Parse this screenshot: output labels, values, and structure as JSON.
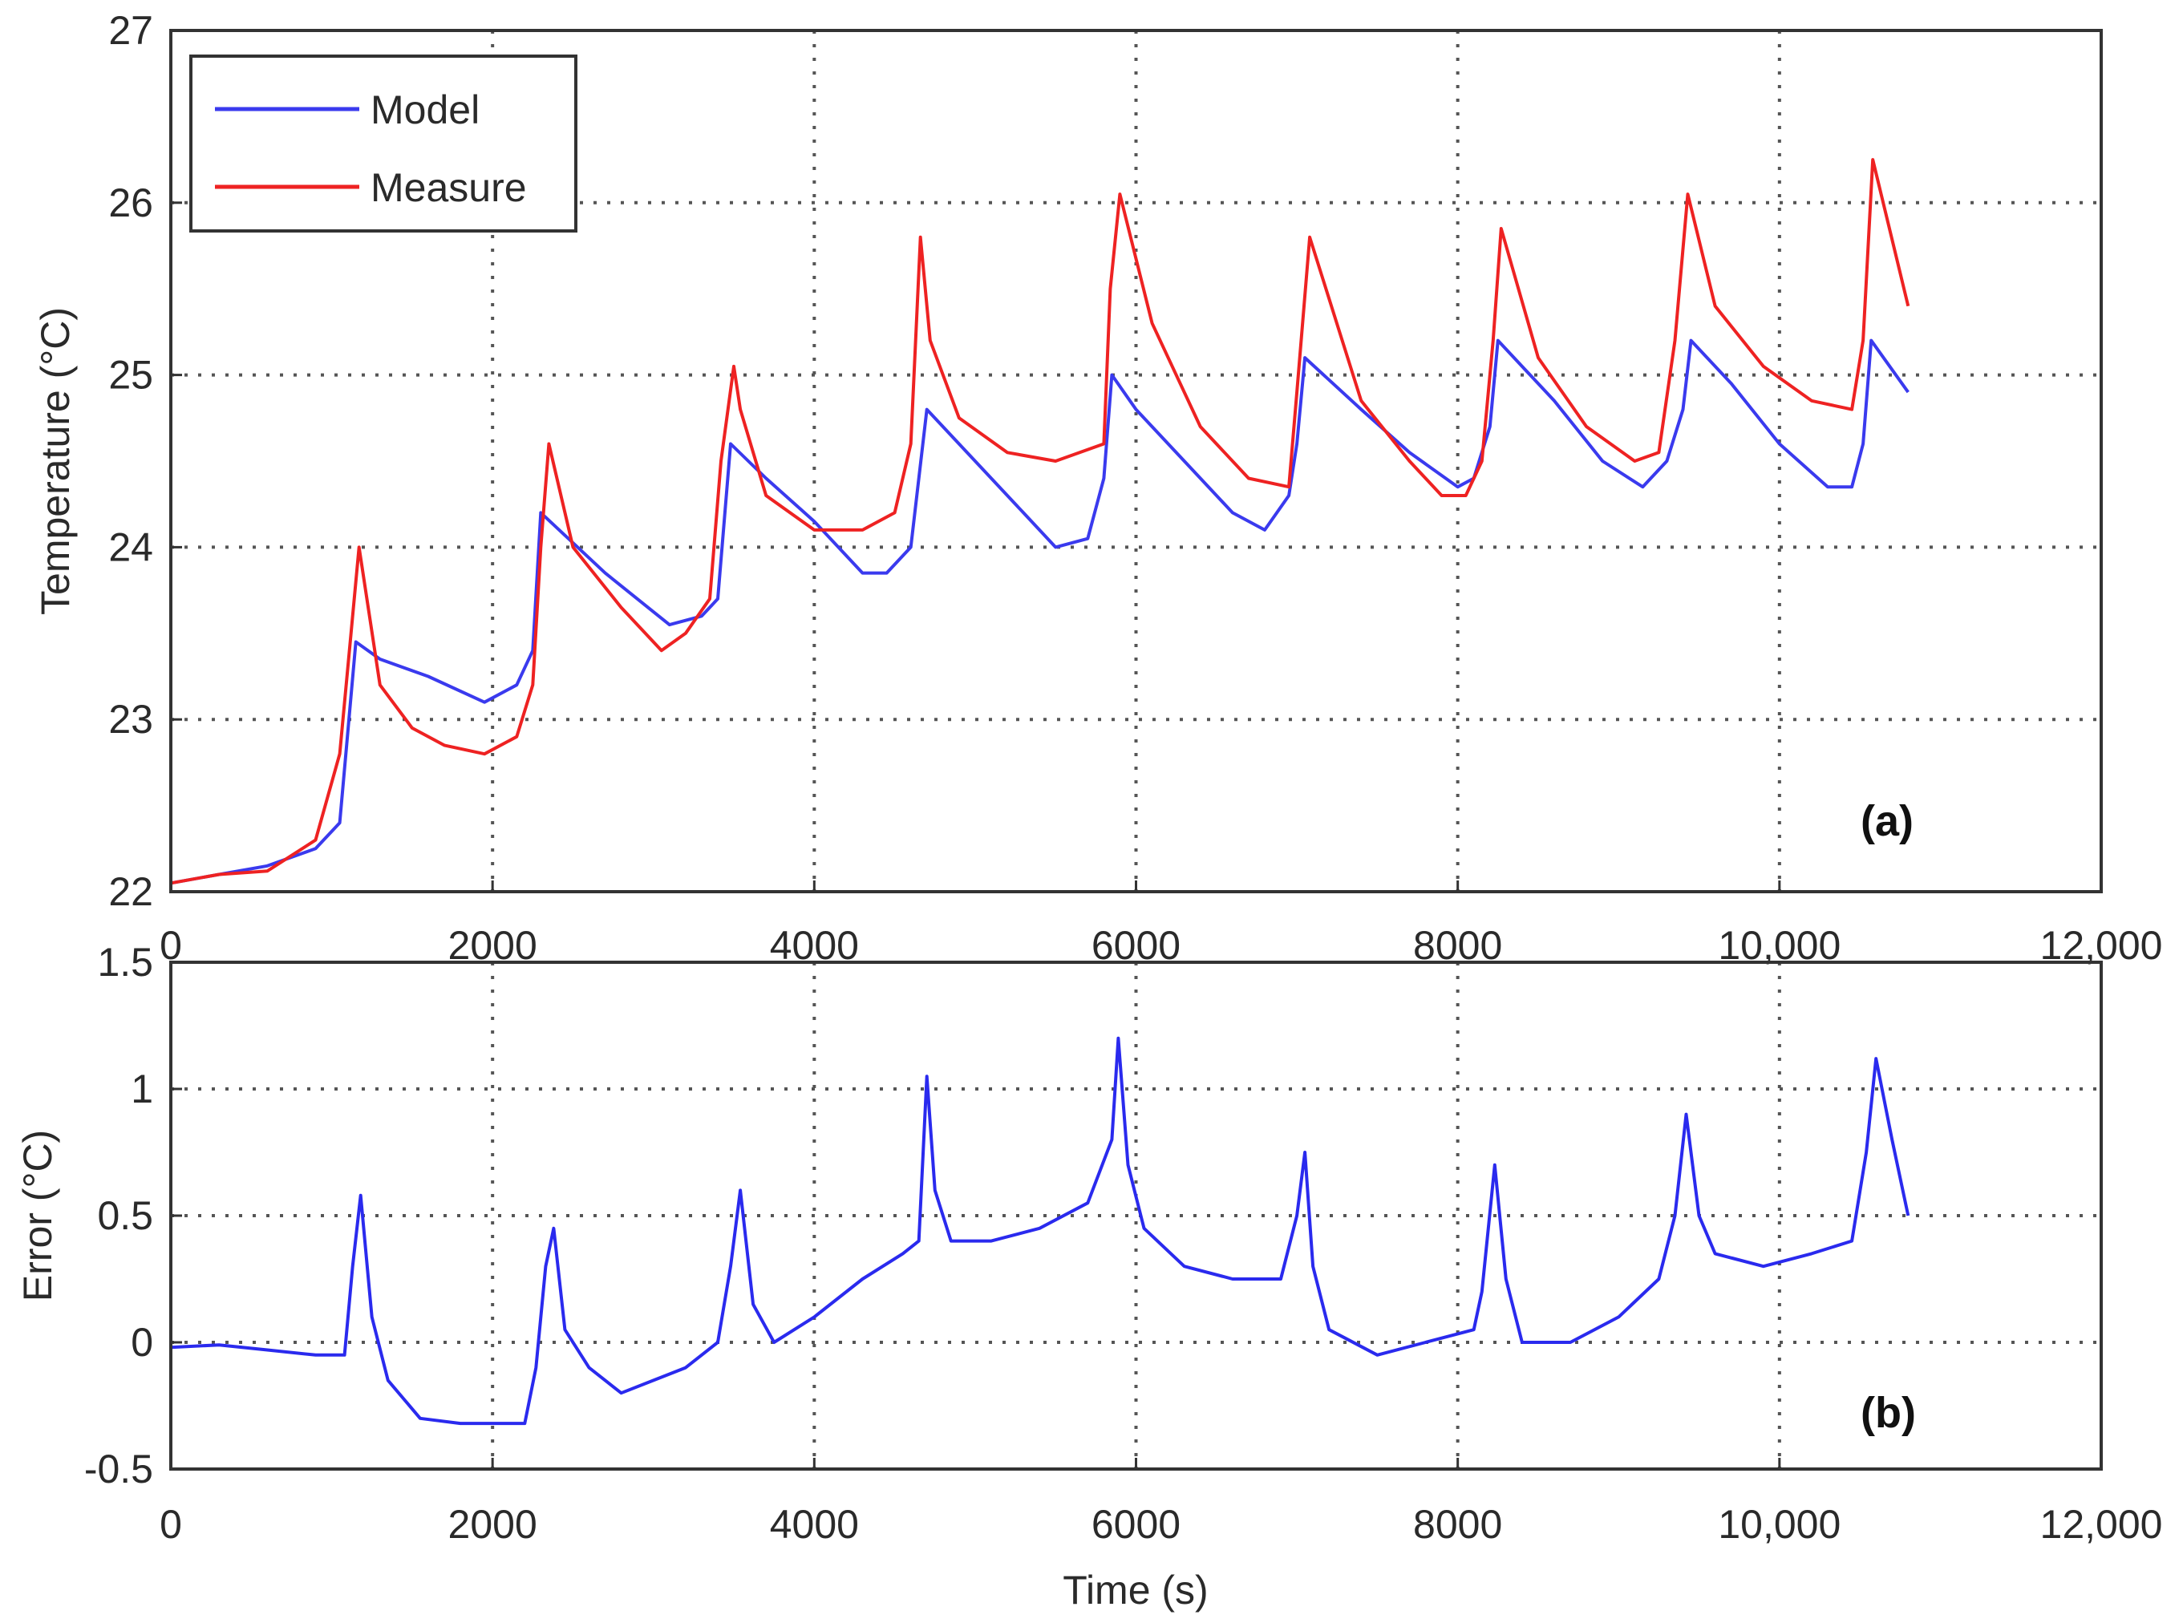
{
  "chart_data": [
    {
      "panel": "(a)",
      "type": "line",
      "xlabel": "",
      "ylabel": "Temperature (°C)",
      "xlim": [
        0,
        12000
      ],
      "ylim": [
        22,
        27
      ],
      "xticks": [
        "0",
        "2000",
        "4000",
        "6000",
        "8000",
        "10,000",
        "12,000"
      ],
      "yticks": [
        "22",
        "23",
        "24",
        "25",
        "26",
        "27"
      ],
      "grid": true,
      "legend": "top-left",
      "series": [
        {
          "name": "Model",
          "color": "#3a3aee",
          "x": [
            0,
            300,
            600,
            900,
            1050,
            1150,
            1300,
            1600,
            1950,
            2150,
            2250,
            2300,
            2700,
            3100,
            3300,
            3400,
            3480,
            3700,
            4000,
            4300,
            4450,
            4600,
            4650,
            4700,
            5000,
            5300,
            5500,
            5700,
            5800,
            5850,
            6000,
            6300,
            6600,
            6800,
            6950,
            7000,
            7050,
            7400,
            7700,
            8000,
            8100,
            8200,
            8250,
            8600,
            8900,
            9150,
            9300,
            9400,
            9450,
            9700,
            10000,
            10300,
            10450,
            10520,
            10570,
            10800
          ],
          "y": [
            22.05,
            22.1,
            22.15,
            22.25,
            22.4,
            23.45,
            23.35,
            23.25,
            23.1,
            23.2,
            23.4,
            24.2,
            23.85,
            23.55,
            23.6,
            23.7,
            24.6,
            24.4,
            24.15,
            23.85,
            23.85,
            24.0,
            24.4,
            24.8,
            24.5,
            24.2,
            24.0,
            24.05,
            24.4,
            25.0,
            24.8,
            24.5,
            24.2,
            24.1,
            24.3,
            24.6,
            25.1,
            24.8,
            24.55,
            24.35,
            24.4,
            24.7,
            25.2,
            24.85,
            24.5,
            24.35,
            24.5,
            24.8,
            25.2,
            24.95,
            24.6,
            24.35,
            24.35,
            24.6,
            25.2,
            24.9
          ]
        },
        {
          "name": "Measure",
          "color": "#ee2222",
          "x": [
            0,
            300,
            600,
            900,
            1050,
            1120,
            1170,
            1300,
            1500,
            1700,
            1950,
            2150,
            2250,
            2300,
            2350,
            2500,
            2800,
            3050,
            3200,
            3350,
            3420,
            3500,
            3540,
            3700,
            4000,
            4300,
            4500,
            4600,
            4660,
            4720,
            4900,
            5200,
            5500,
            5800,
            5840,
            5900,
            6100,
            6400,
            6700,
            6950,
            7000,
            7080,
            7400,
            7700,
            7900,
            8050,
            8150,
            8220,
            8270,
            8500,
            8800,
            9100,
            9250,
            9350,
            9430,
            9600,
            9900,
            10200,
            10450,
            10520,
            10580,
            10800
          ],
          "y": [
            22.05,
            22.1,
            22.12,
            22.3,
            22.8,
            23.5,
            24.0,
            23.2,
            22.95,
            22.85,
            22.8,
            22.9,
            23.2,
            24.0,
            24.6,
            24.0,
            23.65,
            23.4,
            23.5,
            23.7,
            24.5,
            25.05,
            24.8,
            24.3,
            24.1,
            24.1,
            24.2,
            24.6,
            25.8,
            25.2,
            24.75,
            24.55,
            24.5,
            24.6,
            25.5,
            26.05,
            25.3,
            24.7,
            24.4,
            24.35,
            24.9,
            25.8,
            24.85,
            24.5,
            24.3,
            24.3,
            24.5,
            25.2,
            25.85,
            25.1,
            24.7,
            24.5,
            24.55,
            25.2,
            26.05,
            25.4,
            25.05,
            24.85,
            24.8,
            25.2,
            26.25,
            25.4
          ]
        }
      ]
    },
    {
      "panel": "(b)",
      "type": "line",
      "xlabel": "Time (s)",
      "ylabel": "Error (°C)",
      "xlim": [
        0,
        12000
      ],
      "ylim": [
        -0.5,
        1.5
      ],
      "xticks": [
        "0",
        "2000",
        "4000",
        "6000",
        "8000",
        "10,000",
        "12,000"
      ],
      "yticks": [
        "-0.5",
        "0",
        "0.5",
        "1",
        "1.5"
      ],
      "grid": true,
      "series": [
        {
          "name": "",
          "color": "#2a2aee",
          "x": [
            0,
            300,
            600,
            900,
            1080,
            1130,
            1180,
            1250,
            1350,
            1550,
            1800,
            2000,
            2200,
            2270,
            2330,
            2380,
            2450,
            2600,
            2800,
            3000,
            3200,
            3400,
            3480,
            3540,
            3620,
            3750,
            4000,
            4300,
            4550,
            4650,
            4700,
            4750,
            4850,
            5100,
            5400,
            5700,
            5850,
            5890,
            5950,
            6050,
            6300,
            6600,
            6900,
            7000,
            7050,
            7100,
            7200,
            7500,
            7800,
            8100,
            8150,
            8230,
            8300,
            8400,
            8700,
            9000,
            9250,
            9350,
            9420,
            9500,
            9600,
            9900,
            10200,
            10450,
            10540,
            10600,
            10700,
            10800
          ],
          "y": [
            -0.02,
            -0.01,
            -0.03,
            -0.05,
            -0.05,
            0.3,
            0.58,
            0.1,
            -0.15,
            -0.3,
            -0.32,
            -0.32,
            -0.32,
            -0.1,
            0.3,
            0.45,
            0.05,
            -0.1,
            -0.2,
            -0.15,
            -0.1,
            0.0,
            0.3,
            0.6,
            0.15,
            0.0,
            0.1,
            0.25,
            0.35,
            0.4,
            1.05,
            0.6,
            0.4,
            0.4,
            0.45,
            0.55,
            0.8,
            1.2,
            0.7,
            0.45,
            0.3,
            0.25,
            0.25,
            0.5,
            0.75,
            0.3,
            0.05,
            -0.05,
            0.0,
            0.05,
            0.2,
            0.7,
            0.25,
            0.0,
            0.0,
            0.1,
            0.25,
            0.5,
            0.9,
            0.5,
            0.35,
            0.3,
            0.35,
            0.4,
            0.75,
            1.12,
            0.8,
            0.5
          ]
        }
      ]
    }
  ]
}
